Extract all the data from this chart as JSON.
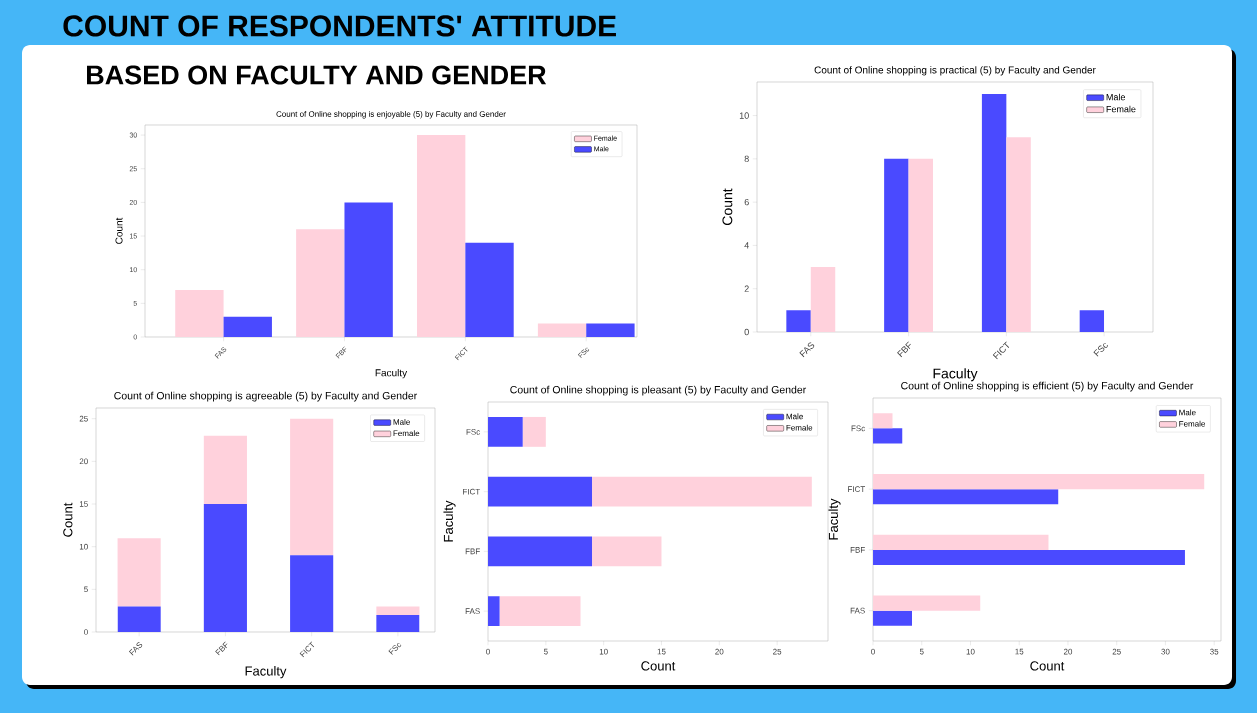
{
  "chart_data": [
    {
      "type": "other",
      "title": "COUNT OF RESPONDENTS' ATTITUDE",
      "subtitle": "BASED ON FACULTY AND GENDER"
    },
    {
      "type": "bar",
      "title": "Count of Online shopping is enjoyable (5) by Faculty and Gender",
      "xlabel": "Faculty",
      "ylabel": "Count",
      "categories": [
        "FAS",
        "FBF",
        "FICT",
        "FSc"
      ],
      "series": [
        {
          "name": "Female",
          "color": "#ffd1dc",
          "values": [
            7,
            16,
            30,
            2
          ]
        },
        {
          "name": "Male",
          "color": "#4a4aff",
          "values": [
            3,
            20,
            14,
            2
          ]
        }
      ],
      "ylim": [
        0,
        31.5
      ],
      "yticks": [
        0,
        5,
        10,
        15,
        20,
        25,
        30
      ],
      "legend": "top right"
    },
    {
      "type": "bar",
      "title": "Count of Online shopping is practical (5) by Faculty and Gender",
      "xlabel": "Faculty",
      "ylabel": "Count",
      "categories": [
        "FAS",
        "FBF",
        "FICT",
        "FSc"
      ],
      "series": [
        {
          "name": "Male",
          "color": "#4a4aff",
          "values": [
            1,
            8,
            11,
            1
          ]
        },
        {
          "name": "Female",
          "color": "#ffd1dc",
          "values": [
            3,
            8,
            9,
            0
          ]
        }
      ],
      "ylim": [
        0,
        11.55
      ],
      "yticks": [
        0,
        2,
        4,
        6,
        8,
        10
      ],
      "legend": "top right"
    },
    {
      "type": "bar",
      "title": "Count of Online shopping is agreeable (5) by Faculty and Gender",
      "xlabel": "Faculty",
      "ylabel": "Count",
      "categories": [
        "FAS",
        "FBF",
        "FICT",
        "FSc"
      ],
      "stacked": true,
      "series": [
        {
          "name": "Male",
          "color": "#4a4aff",
          "values": [
            3,
            15,
            9,
            2
          ]
        },
        {
          "name": "Female",
          "color": "#ffd1dc",
          "values": [
            8,
            8,
            16,
            1
          ]
        }
      ],
      "ylim": [
        0,
        26.25
      ],
      "yticks": [
        0,
        5,
        10,
        15,
        20,
        25
      ],
      "legend": "top right"
    },
    {
      "type": "bar",
      "title": "Count of Online shopping is pleasant (5) by Faculty and Gender",
      "xlabel": "Count",
      "ylabel": "Faculty",
      "categories": [
        "FSc",
        "FICT",
        "FBF",
        "FAS"
      ],
      "stacked": true,
      "orientation": "horizontal",
      "series": [
        {
          "name": "Male",
          "color": "#4a4aff",
          "values": [
            3,
            9,
            9,
            1
          ]
        },
        {
          "name": "Female",
          "color": "#ffd1dc",
          "values": [
            2,
            19,
            6,
            7
          ]
        }
      ],
      "xlim": [
        0,
        29.4
      ],
      "xticks": [
        0,
        5,
        10,
        15,
        20,
        25
      ],
      "legend": "top right"
    },
    {
      "type": "bar",
      "title": "Count of Online shopping is efficient (5) by Faculty and Gender",
      "xlabel": "Count",
      "ylabel": "Faculty",
      "categories": [
        "FSc",
        "FICT",
        "FBF",
        "FAS"
      ],
      "orientation": "horizontal",
      "series": [
        {
          "name": "Male",
          "color": "#4a4aff",
          "values": [
            3,
            19,
            32,
            4
          ]
        },
        {
          "name": "Female",
          "color": "#ffd1dc",
          "values": [
            2,
            34,
            18,
            11
          ]
        }
      ],
      "xlim": [
        0,
        35.7
      ],
      "xticks": [
        0,
        5,
        10,
        15,
        20,
        25,
        30,
        35
      ],
      "legend": "top right"
    }
  ]
}
